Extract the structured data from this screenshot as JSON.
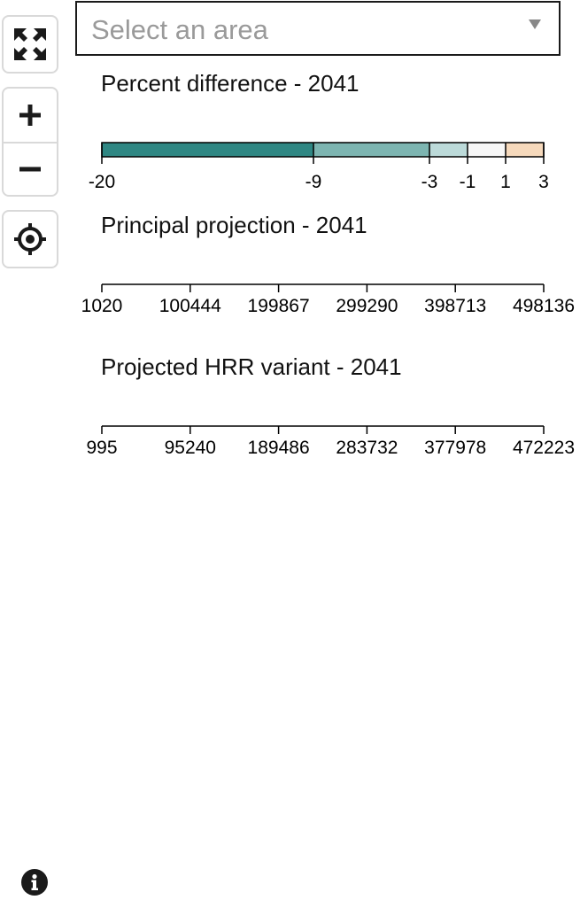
{
  "controls": {
    "fullscreen_icon": "expand-arrows-icon",
    "zoom_in_icon": "plus-icon",
    "zoom_out_icon": "minus-icon",
    "locate_icon": "locate-crosshair-icon",
    "info_icon": "info-icon"
  },
  "area_select": {
    "placeholder": "Select an area"
  },
  "legends": {
    "percent_difference": {
      "title": "Percent difference - 2041",
      "ticks": [
        "-20",
        "-9",
        "-3",
        "-1",
        "1",
        "3"
      ],
      "colors": [
        "#2f8783",
        "#7db5b1",
        "#bcdad9",
        "#f7f7f7",
        "#f6d9bc"
      ]
    },
    "principal_projection": {
      "title": "Principal projection - 2041",
      "ticks": [
        "1020",
        "100444",
        "199867",
        "299290",
        "398713",
        "498136"
      ]
    },
    "hrr_variant": {
      "title": "Projected HRR variant - 2041",
      "ticks": [
        "995",
        "95240",
        "189486",
        "283732",
        "377978",
        "472223"
      ]
    }
  },
  "chart_data": [
    {
      "type": "heatmap",
      "title": "Percent difference - 2041",
      "bins": [
        [
          -20,
          -9
        ],
        [
          -9,
          -3
        ],
        [
          -3,
          -1
        ],
        [
          -1,
          1
        ],
        [
          1,
          3
        ]
      ],
      "tick_values": [
        -20,
        -9,
        -3,
        -1,
        1,
        3
      ],
      "colors": [
        "#2f8783",
        "#7db5b1",
        "#bcdad9",
        "#f7f7f7",
        "#f6d9bc"
      ]
    },
    {
      "type": "table",
      "title": "Principal projection - 2041",
      "tick_values": [
        1020,
        100444,
        199867,
        299290,
        398713,
        498136
      ]
    },
    {
      "type": "table",
      "title": "Projected HRR variant - 2041",
      "tick_values": [
        995,
        95240,
        189486,
        283732,
        377978,
        472223
      ]
    }
  ]
}
